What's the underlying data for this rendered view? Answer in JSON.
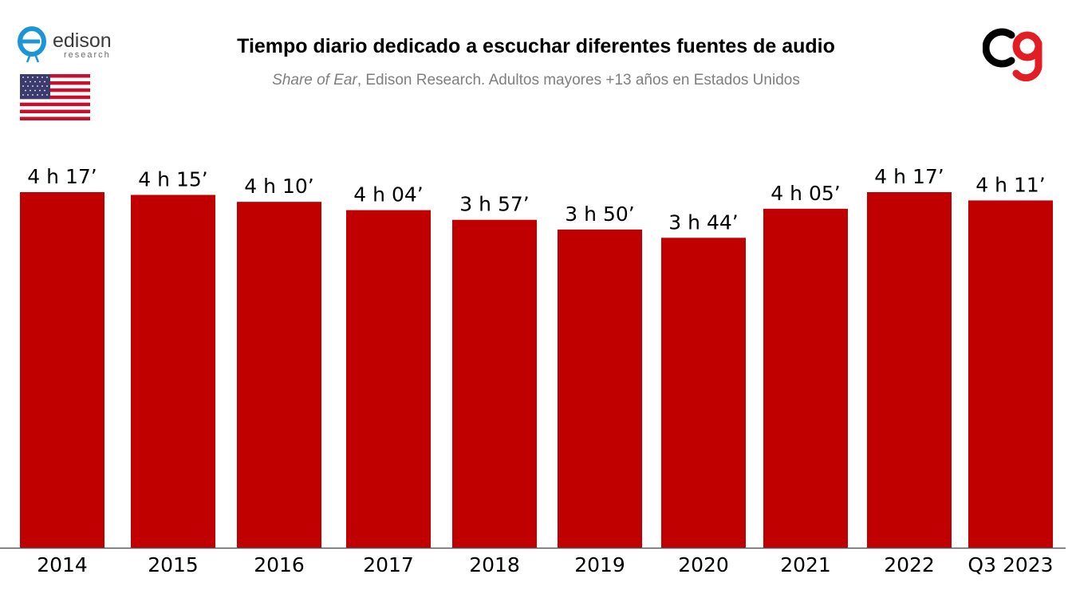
{
  "header": {
    "title": "Tiempo diario dedicado a escuchar diferentes fuentes de audio",
    "subtitle_italic": "Share of Ear",
    "subtitle_rest": ", Edison Research. Adultos mayores +13 años en Estados Unidos"
  },
  "logos": {
    "edison_main": "edison",
    "edison_sub": "research"
  },
  "colors": {
    "bar": "#c00000",
    "title": "#000000",
    "subtitle": "#7f7f7f"
  },
  "chart_data": {
    "type": "bar",
    "categories": [
      "2014",
      "2015",
      "2016",
      "2017",
      "2018",
      "2019",
      "2020",
      "2021",
      "2022",
      "Q3 2023"
    ],
    "values": [
      257,
      255,
      250,
      244,
      237,
      230,
      224,
      245,
      257,
      251
    ],
    "data_labels": [
      "4 h 17’",
      "4 h 15’",
      "4 h 10’",
      "4 h 04’",
      "3 h 57’",
      "3 h 50’",
      "3 h 44’",
      "4 h 05’",
      "4 h 17’",
      "4 h 11’"
    ],
    "ylim": [
      0,
      257
    ],
    "grid": false,
    "legend": "none"
  }
}
